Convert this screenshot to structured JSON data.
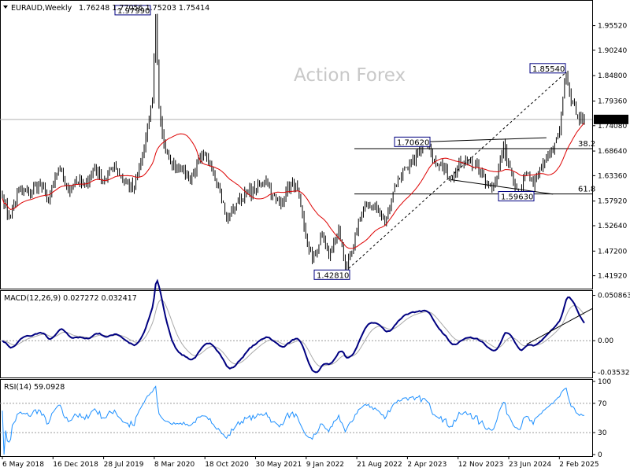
{
  "header": {
    "symbol_label": "EURAUD,Weekly",
    "ohlc_text": "1.76248 1.77056 1.75203 1.75414"
  },
  "watermark": "Action Forex",
  "colors": {
    "candle": "#000000",
    "sma": "#dd0000",
    "macd_line": "#000080",
    "macd_signal": "#a9a9a9",
    "rsi": "#1e90ff",
    "levels": "#000000",
    "trendline": "#000000",
    "grid": "#9a9a9a"
  },
  "icons": {
    "menu_icon": "triangle-down-icon"
  },
  "chart_data": [
    {
      "type": "candlestick",
      "panel": "price",
      "ylim": [
        1.4,
        2.0
      ],
      "y_ticks": [
        "1.95520",
        "1.90240",
        "1.84800",
        "1.79360",
        "1.74080",
        "1.68640",
        "1.63360",
        "1.57920",
        "1.52640",
        "1.47200",
        "1.41920"
      ],
      "current_price": "1.75414",
      "fib_levels": [
        {
          "label": "38.2",
          "value": 1.6915
        },
        {
          "label": "61.8",
          "value": 1.5945
        }
      ],
      "annotations": [
        {
          "text": "1.97990",
          "value": 1.9799
        },
        {
          "text": "1.85540",
          "value": 1.8554
        },
        {
          "text": "1.70620",
          "value": 1.7062
        },
        {
          "text": "1.59630",
          "value": 1.5963
        },
        {
          "text": "1.42810",
          "value": 1.4281
        }
      ],
      "series": [
        {
          "kind": "ohlc",
          "weeks": 354
        },
        {
          "kind": "moving-average"
        }
      ],
      "anchors": [
        [
          0,
          1.585
        ],
        [
          4,
          1.545
        ],
        [
          10,
          1.6
        ],
        [
          16,
          1.595
        ],
        [
          22,
          1.62
        ],
        [
          28,
          1.58
        ],
        [
          34,
          1.65
        ],
        [
          40,
          1.6
        ],
        [
          44,
          1.625
        ],
        [
          50,
          1.61
        ],
        [
          56,
          1.65
        ],
        [
          62,
          1.625
        ],
        [
          68,
          1.655
        ],
        [
          74,
          1.62
        ],
        [
          80,
          1.605
        ],
        [
          86,
          1.69
        ],
        [
          91,
          1.8
        ],
        [
          93,
          1.9799
        ],
        [
          95,
          1.78
        ],
        [
          98,
          1.7
        ],
        [
          102,
          1.66
        ],
        [
          108,
          1.655
        ],
        [
          114,
          1.625
        ],
        [
          120,
          1.67
        ],
        [
          126,
          1.665
        ],
        [
          132,
          1.6
        ],
        [
          136,
          1.54
        ],
        [
          142,
          1.575
        ],
        [
          148,
          1.595
        ],
        [
          154,
          1.605
        ],
        [
          160,
          1.625
        ],
        [
          164,
          1.59
        ],
        [
          168,
          1.57
        ],
        [
          172,
          1.6
        ],
        [
          178,
          1.615
        ],
        [
          184,
          1.5
        ],
        [
          188,
          1.455
        ],
        [
          194,
          1.505
        ],
        [
          198,
          1.46
        ],
        [
          204,
          1.52
        ],
        [
          208,
          1.4281
        ],
        [
          212,
          1.47
        ],
        [
          216,
          1.535
        ],
        [
          222,
          1.575
        ],
        [
          228,
          1.56
        ],
        [
          232,
          1.535
        ],
        [
          238,
          1.61
        ],
        [
          244,
          1.65
        ],
        [
          250,
          1.665
        ],
        [
          256,
          1.7062
        ],
        [
          260,
          1.68
        ],
        [
          266,
          1.66
        ],
        [
          272,
          1.625
        ],
        [
          278,
          1.66
        ],
        [
          284,
          1.665
        ],
        [
          290,
          1.64
        ],
        [
          296,
          1.61
        ],
        [
          300,
          1.63
        ],
        [
          304,
          1.7
        ],
        [
          308,
          1.65
        ],
        [
          313,
          1.5963
        ],
        [
          318,
          1.64
        ],
        [
          322,
          1.61
        ],
        [
          328,
          1.66
        ],
        [
          334,
          1.69
        ],
        [
          338,
          1.73
        ],
        [
          342,
          1.8554
        ],
        [
          345,
          1.79
        ],
        [
          348,
          1.765
        ],
        [
          351,
          1.76
        ],
        [
          353,
          1.75414
        ]
      ]
    },
    {
      "type": "line",
      "panel": "macd",
      "title": "MACD(12,26,9) 0.027272 0.032417",
      "ylim": [
        -0.0395,
        0.054
      ],
      "y_ticks": [
        "0.050863",
        "0.00",
        "-0.035322"
      ],
      "series": [
        {
          "kind": "macd"
        },
        {
          "kind": "signal"
        }
      ]
    },
    {
      "type": "line",
      "panel": "rsi",
      "title": "RSI(14) 59.0928",
      "ylim": [
        0,
        100
      ],
      "y_ticks": [
        "100",
        "70",
        "30",
        "0"
      ],
      "levels": [
        70,
        30
      ],
      "series": [
        {
          "kind": "rsi"
        }
      ]
    }
  ],
  "x_axis": {
    "labels": [
      "6 May 2018",
      "16 Dec 2018",
      "28 Jul 2019",
      "8 Mar 2020",
      "18 Oct 2020",
      "30 May 2021",
      "9 Jan 2022",
      "21 Aug 2022",
      "2 Apr 2023",
      "12 Nov 2023",
      "23 Jun 2024",
      "2 Feb 2025"
    ]
  }
}
